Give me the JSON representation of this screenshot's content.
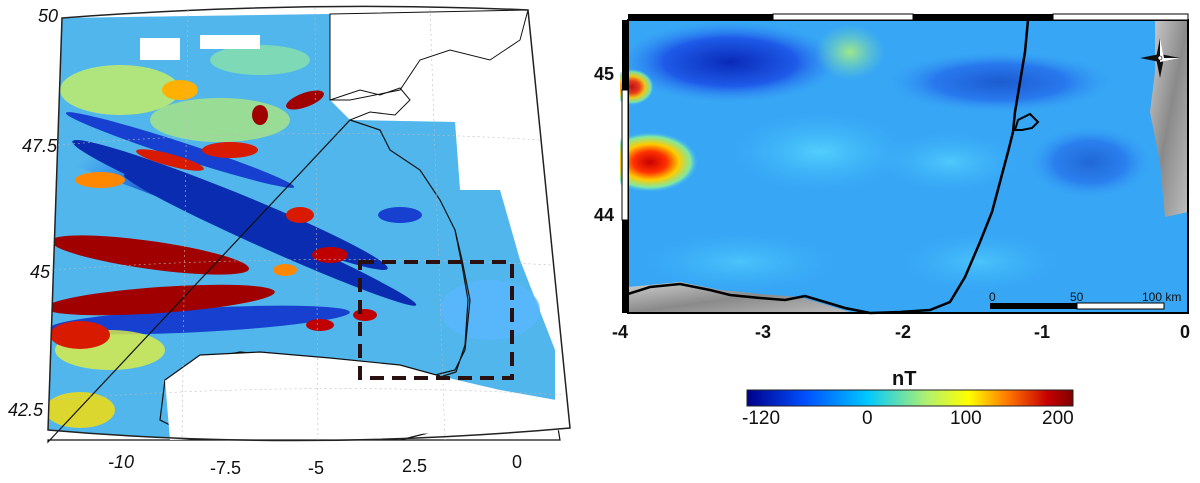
{
  "left_map": {
    "lat_labels": [
      "50",
      "47.5",
      "45",
      "42.5"
    ],
    "lon_labels": [
      "-10",
      "-7.5",
      "-5",
      "2.5",
      "0"
    ]
  },
  "right_map": {
    "lat_labels": [
      "45",
      "44"
    ],
    "lon_labels": [
      "-4",
      "-3",
      "-2",
      "-1",
      "0"
    ],
    "scalebar": {
      "labels": [
        "0",
        "50",
        "100 km"
      ]
    },
    "compass_icon": "compass-rose-icon"
  },
  "colorbar": {
    "unit": "nT",
    "tick_labels": [
      "-120",
      "0",
      "100",
      "200"
    ],
    "range": [
      -120,
      200
    ],
    "colors": [
      "#00008b",
      "#0050ff",
      "#00c8ff",
      "#ffff00",
      "#ff7800",
      "#c80000",
      "#800000"
    ]
  }
}
